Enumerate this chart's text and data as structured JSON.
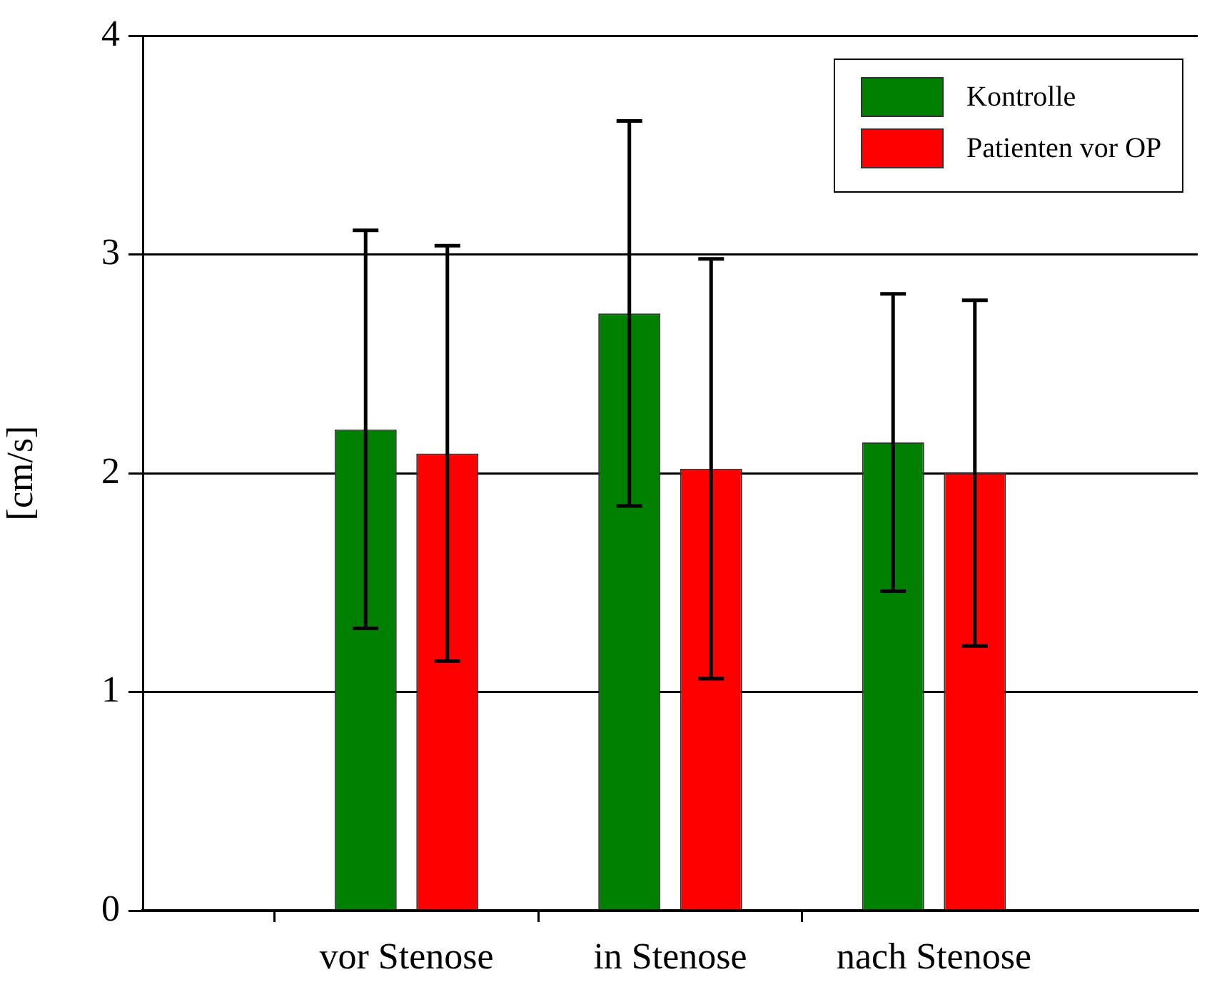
{
  "chart_data": {
    "type": "bar",
    "ylabel": "[cm/s]",
    "categories": [
      null,
      "vor Stenose",
      "in Stenose",
      "nach Stenose",
      null
    ],
    "series": [
      {
        "name": "Kontrolle",
        "color": "#008000",
        "values": [
          null,
          2.2,
          2.73,
          2.14,
          null
        ],
        "errors": [
          null,
          0.91,
          0.88,
          0.68,
          null
        ]
      },
      {
        "name": "Patienten vor OP",
        "color": "#ff0000",
        "values": [
          null,
          2.09,
          2.02,
          2.0,
          null
        ],
        "errors": [
          null,
          0.95,
          0.96,
          0.79,
          null
        ]
      }
    ],
    "ylim": [
      0,
      4
    ],
    "yticks": [
      0,
      1,
      2,
      3,
      4
    ],
    "grid": "y",
    "legend": "top right"
  }
}
